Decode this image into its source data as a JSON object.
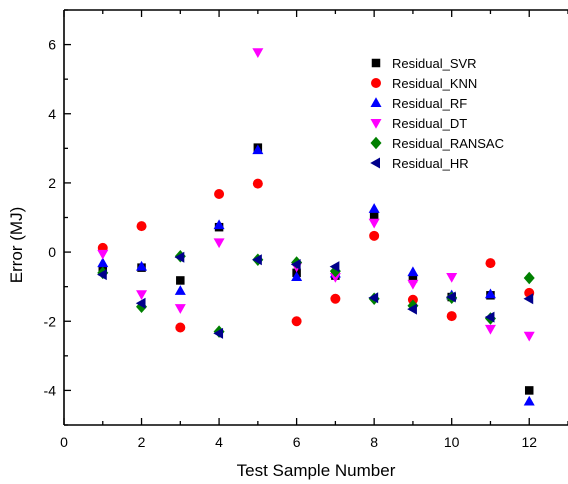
{
  "chart_data": {
    "type": "scatter",
    "xlabel": "Test Sample Number",
    "ylabel": "Error (MJ)",
    "xlim": [
      0,
      13
    ],
    "ylim": [
      -5,
      7
    ],
    "x_ticks": [
      0,
      2,
      4,
      6,
      8,
      10,
      12
    ],
    "y_ticks": [
      -4,
      -2,
      0,
      2,
      4,
      6
    ],
    "grid": false,
    "legend_position": "top-right",
    "x": [
      1,
      2,
      3,
      4,
      5,
      6,
      7,
      8,
      9,
      10,
      11,
      12
    ],
    "series": [
      {
        "name": "Residual_SVR",
        "marker": "square",
        "color": "#000000",
        "values": [
          -0.5,
          -0.45,
          -0.82,
          0.72,
          3.02,
          -0.6,
          -0.68,
          1.08,
          -0.76,
          -1.3,
          -1.25,
          -4.0
        ]
      },
      {
        "name": "Residual_KNN",
        "marker": "circle",
        "color": "#ff0000",
        "values": [
          0.12,
          0.75,
          -2.18,
          1.68,
          1.98,
          -2.0,
          -1.35,
          0.47,
          -1.38,
          -1.85,
          -0.32,
          -1.18
        ]
      },
      {
        "name": "Residual_RF",
        "marker": "triangle-up",
        "color": "#0000ff",
        "values": [
          -0.32,
          -0.42,
          -1.12,
          0.78,
          2.95,
          -0.72,
          -0.62,
          1.25,
          -0.58,
          -1.25,
          -1.22,
          -4.32
        ]
      },
      {
        "name": "Residual_DT",
        "marker": "triangle-down",
        "color": "#ff00ff",
        "values": [
          -0.05,
          -1.22,
          -1.62,
          0.28,
          5.78,
          -0.42,
          -0.72,
          0.85,
          -0.92,
          -0.72,
          -2.22,
          -2.42
        ]
      },
      {
        "name": "Residual_RANSAC",
        "marker": "diamond",
        "color": "#008000",
        "values": [
          -0.6,
          -1.58,
          -0.12,
          -2.3,
          -0.22,
          -0.3,
          -0.55,
          -1.35,
          -1.55,
          -1.32,
          -1.92,
          -0.75
        ]
      },
      {
        "name": "Residual_HR",
        "marker": "triangle-left",
        "color": "#00008b",
        "values": [
          -0.65,
          -1.48,
          -0.15,
          -2.35,
          -0.22,
          -0.36,
          -0.42,
          -1.32,
          -1.65,
          -1.3,
          -1.88,
          -1.35
        ]
      }
    ]
  }
}
